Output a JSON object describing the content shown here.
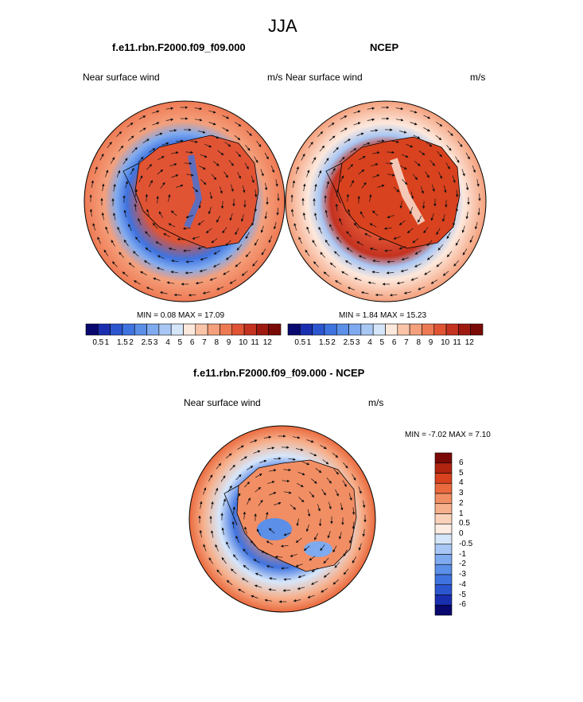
{
  "figure": {
    "title": "JJA"
  },
  "panels": [
    {
      "title": "f.e11.rbn.F2000.f09_f09.000",
      "variable": "Near surface wind",
      "units": "m/s",
      "stats": "MIN =   0.08 MAX =  17.09"
    },
    {
      "title": "NCEP",
      "variable": "Near surface wind",
      "units": "m/s",
      "stats": "MIN =   1.84 MAX =  15.23"
    },
    {
      "title": "f.e11.rbn.F2000.f09_f09.000 - NCEP",
      "variable": "Near surface wind",
      "units": "m/s",
      "stats": "MIN =  -7.02 MAX =   7.10"
    }
  ],
  "colorbars": {
    "wind": {
      "levels": [
        "0.5",
        "1",
        "1.5",
        "2",
        "2.5",
        "3",
        "4",
        "5",
        "6",
        "7",
        "8",
        "9",
        "10",
        "11",
        "12"
      ],
      "colors": [
        "#08086e",
        "#1a2fb0",
        "#2c55d0",
        "#3f73e0",
        "#5b8fe8",
        "#7faaef",
        "#a9c7f4",
        "#d6e6fa",
        "#fde8dc",
        "#f9c4a8",
        "#f4a07c",
        "#ee7a54",
        "#e05434",
        "#c43220",
        "#9e1a10",
        "#7a0a06"
      ]
    },
    "diff": {
      "levels": [
        "6",
        "5",
        "4",
        "3",
        "2",
        "1",
        "0.5",
        "0",
        "-0.5",
        "-1",
        "-2",
        "-3",
        "-4",
        "-5",
        "-6"
      ],
      "colors": [
        "#7a0a06",
        "#b02410",
        "#d8421e",
        "#ea6a3e",
        "#f28e64",
        "#f6b08c",
        "#fad2ba",
        "#fdece2",
        "#d6e6fa",
        "#a9c7f4",
        "#7faaef",
        "#5b8fe8",
        "#3f73e0",
        "#2c55d0",
        "#1a2fb0",
        "#08086e"
      ]
    }
  }
}
